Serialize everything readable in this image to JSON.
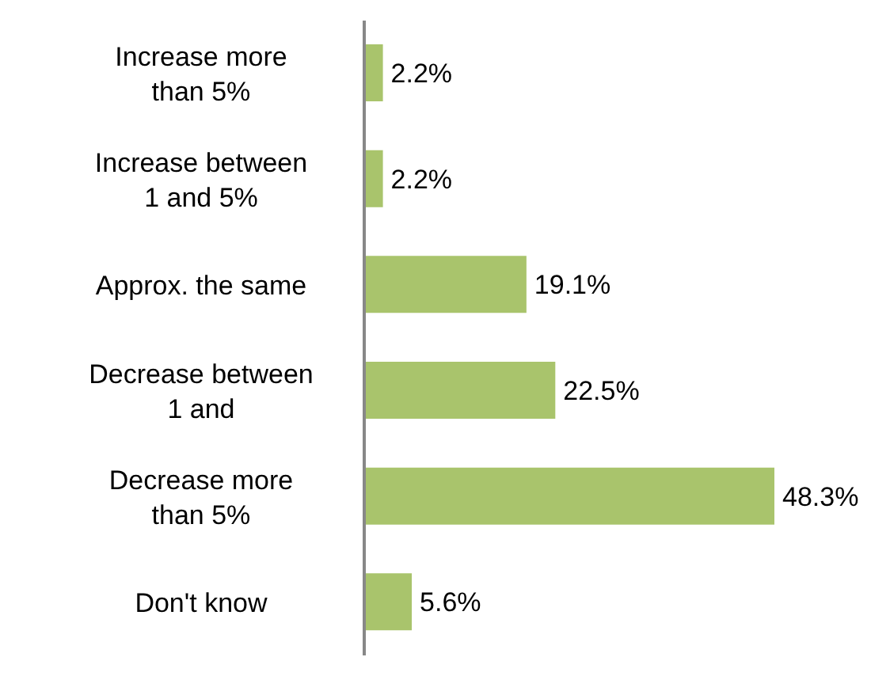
{
  "chart_data": {
    "type": "bar",
    "orientation": "horizontal",
    "categories": [
      "Increase more than 5%",
      "Increase between 1 and 5%",
      "Approx. the same",
      "Decrease between 1 and",
      "Decrease more than 5%",
      "Don't know"
    ],
    "values": [
      2.2,
      2.2,
      19.1,
      22.5,
      48.3,
      5.6
    ],
    "value_labels": [
      "2.2%",
      "2.2%",
      "19.1%",
      "22.5%",
      "48.3%",
      "5.6%"
    ],
    "color": "#a9c46c",
    "tick_labels": "y",
    "legend": false,
    "grid": false
  }
}
